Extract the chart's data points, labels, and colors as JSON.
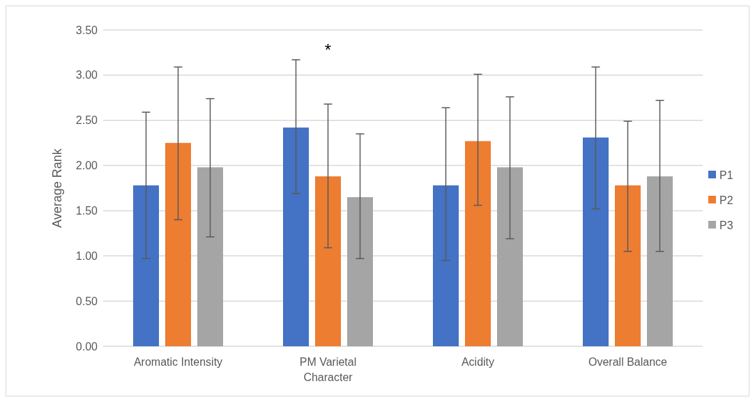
{
  "chart_data": {
    "type": "bar",
    "ylabel": "Average Rank",
    "categories": [
      "Aromatic Intensity",
      "PM Varietal Character",
      "Acidity",
      "Overall Balance"
    ],
    "series": [
      {
        "name": "P1",
        "color": "#4472c4",
        "values": [
          1.78,
          2.42,
          1.78,
          2.31
        ],
        "errors": [
          [
            0.97,
            2.59
          ],
          [
            1.69,
            3.17
          ],
          [
            0.95,
            2.64
          ],
          [
            1.52,
            3.09
          ]
        ]
      },
      {
        "name": "P2",
        "color": "#ed7d31",
        "values": [
          2.25,
          1.88,
          2.27,
          1.78
        ],
        "errors": [
          [
            1.4,
            3.09
          ],
          [
            1.09,
            2.68
          ],
          [
            1.56,
            3.01
          ],
          [
            1.05,
            2.49
          ]
        ]
      },
      {
        "name": "P3",
        "color": "#a5a5a5",
        "values": [
          1.98,
          1.65,
          1.98,
          1.88
        ],
        "errors": [
          [
            1.21,
            2.74
          ],
          [
            0.97,
            2.35
          ],
          [
            1.19,
            2.76
          ],
          [
            1.05,
            2.72
          ]
        ]
      }
    ],
    "ylim": [
      0,
      3.5
    ],
    "yticks": [
      {
        "value": 0,
        "label": "0.00"
      },
      {
        "value": 0.5,
        "label": "0.50"
      },
      {
        "value": 1,
        "label": "1.00"
      },
      {
        "value": 1.5,
        "label": "1.50"
      },
      {
        "value": 2,
        "label": "2.00"
      },
      {
        "value": 2.5,
        "label": "2.50"
      },
      {
        "value": 3,
        "label": "3.00"
      },
      {
        "value": 3.5,
        "label": "3.50"
      }
    ],
    "grid": "y",
    "legend": "right",
    "annotations": [
      "*"
    ]
  }
}
